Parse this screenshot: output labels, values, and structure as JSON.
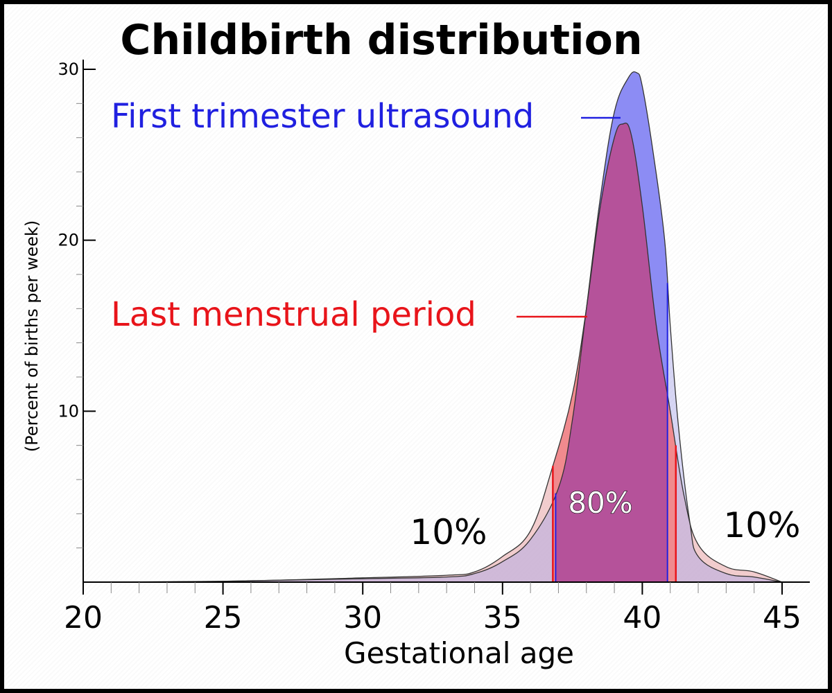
{
  "chart_data": {
    "type": "area",
    "title": "Childbirth distribution",
    "xlabel": "Gestational age",
    "ylabel": "(Percent of births per week)",
    "xlim": [
      20,
      46
    ],
    "ylim": [
      0,
      30.5
    ],
    "x_ticks": [
      20,
      25,
      30,
      35,
      40,
      45
    ],
    "y_ticks": [
      10,
      20,
      30
    ],
    "series": [
      {
        "name": "Last menstrual period",
        "color": "#e8141a",
        "points": [
          [
            20,
            0
          ],
          [
            25,
            0.05
          ],
          [
            30,
            0.25
          ],
          [
            33,
            0.4
          ],
          [
            34,
            0.6
          ],
          [
            35,
            1.5
          ],
          [
            36,
            3.0
          ],
          [
            36.8,
            6.8
          ],
          [
            37.5,
            11
          ],
          [
            38,
            16
          ],
          [
            38.5,
            22
          ],
          [
            39,
            26
          ],
          [
            39.3,
            26.8
          ],
          [
            39.6,
            26.2
          ],
          [
            40,
            22
          ],
          [
            40.5,
            15
          ],
          [
            41,
            10
          ],
          [
            41.5,
            5
          ],
          [
            42,
            2.2
          ],
          [
            43,
            0.9
          ],
          [
            44,
            0.6
          ],
          [
            45,
            0
          ]
        ],
        "band_80": [
          36.8,
          41.2
        ]
      },
      {
        "name": "First trimester ultrasound",
        "color": "#2020e0",
        "points": [
          [
            20,
            0
          ],
          [
            25,
            0.05
          ],
          [
            30,
            0.2
          ],
          [
            33,
            0.3
          ],
          [
            34,
            0.5
          ],
          [
            35,
            1.2
          ],
          [
            36,
            2.5
          ],
          [
            37,
            5.5
          ],
          [
            37.5,
            9.5
          ],
          [
            38,
            16
          ],
          [
            38.5,
            22.5
          ],
          [
            39,
            27.5
          ],
          [
            39.5,
            29.5
          ],
          [
            39.8,
            29.8
          ],
          [
            40,
            29
          ],
          [
            40.4,
            25
          ],
          [
            40.8,
            20
          ],
          [
            41,
            15
          ],
          [
            41.3,
            9
          ],
          [
            41.7,
            3.5
          ],
          [
            42,
            1.5
          ],
          [
            43,
            0.5
          ],
          [
            44,
            0.3
          ],
          [
            45,
            0
          ]
        ],
        "band_80": [
          36.9,
          40.9
        ]
      }
    ],
    "annotations": {
      "left_tail": "10%",
      "center": "80%",
      "right_tail": "10%"
    }
  }
}
